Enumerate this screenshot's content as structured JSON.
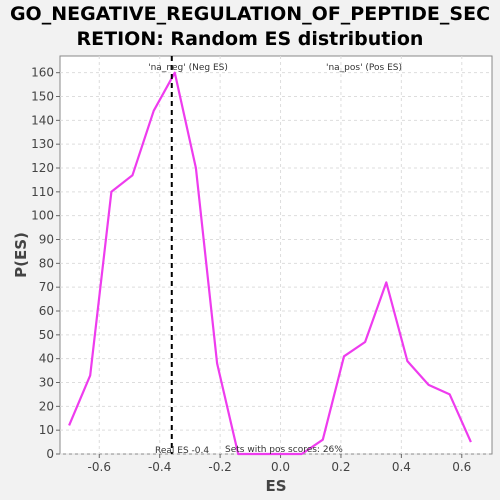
{
  "chart_data": {
    "type": "line",
    "title": "GO_NEGATIVE_REGULATION_OF_PEPTIDE_SEC\nRETION: Random ES distribution",
    "xlabel": "ES",
    "ylabel": "P(ES)",
    "xlim": [
      -0.73,
      0.7
    ],
    "ylim": [
      0,
      167
    ],
    "x_ticks": [
      "-0.6",
      "-0.4",
      "-0.2",
      "0.0",
      "0.2",
      "0.4",
      "0.6"
    ],
    "y_ticks": [
      "0",
      "10",
      "20",
      "30",
      "40",
      "50",
      "60",
      "70",
      "80",
      "90",
      "100",
      "110",
      "120",
      "130",
      "140",
      "150",
      "160"
    ],
    "grid": true,
    "series": [
      {
        "color": "#ee3cee",
        "x": [
          -0.7,
          -0.63,
          -0.56,
          -0.49,
          -0.42,
          -0.35,
          -0.28,
          -0.21,
          -0.14,
          -0.07,
          0.0,
          0.07,
          0.14,
          0.21,
          0.28,
          0.35,
          0.42,
          0.49,
          0.56,
          0.63
        ],
        "y": [
          12,
          33,
          110,
          117,
          144,
          160,
          120,
          38,
          0,
          0,
          0,
          0,
          6,
          41,
          47,
          72,
          39,
          29,
          25,
          5
        ]
      }
    ],
    "real_es": -0.36,
    "annotations": {
      "neg_label": "'na_neg' (Neg ES)",
      "pos_label": "'na_pos' (Pos ES)",
      "real_es_label": "Real ES -0.4",
      "pos_scores_label": "Sets with pos scores: 26%"
    },
    "colors": {
      "neg": "#3333cc",
      "pos": "#ee2222",
      "plot_bg": "#ffffff"
    }
  }
}
